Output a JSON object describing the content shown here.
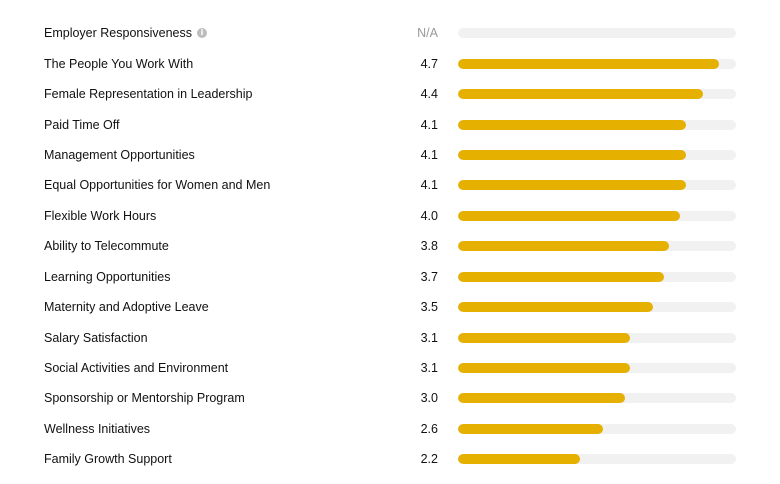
{
  "colors": {
    "bar_fill": "#e5b000",
    "bar_track": "#f1f1f1",
    "na_text": "#9a9a9a"
  },
  "scale_max": 5,
  "ratings": [
    {
      "label": "Employer Responsiveness",
      "score": "N/A",
      "value": null,
      "has_info_icon": true
    },
    {
      "label": "The People You Work With",
      "score": "4.7",
      "value": 4.7
    },
    {
      "label": "Female Representation in Leadership",
      "score": "4.4",
      "value": 4.4
    },
    {
      "label": "Paid Time Off",
      "score": "4.1",
      "value": 4.1
    },
    {
      "label": "Management Opportunities",
      "score": "4.1",
      "value": 4.1
    },
    {
      "label": "Equal Opportunities for Women and Men",
      "score": "4.1",
      "value": 4.1
    },
    {
      "label": "Flexible Work Hours",
      "score": "4.0",
      "value": 4.0
    },
    {
      "label": "Ability to Telecommute",
      "score": "3.8",
      "value": 3.8
    },
    {
      "label": "Learning Opportunities",
      "score": "3.7",
      "value": 3.7
    },
    {
      "label": "Maternity and Adoptive Leave",
      "score": "3.5",
      "value": 3.5
    },
    {
      "label": "Salary Satisfaction",
      "score": "3.1",
      "value": 3.1
    },
    {
      "label": "Social Activities and Environment",
      "score": "3.1",
      "value": 3.1
    },
    {
      "label": "Sponsorship or Mentorship Program",
      "score": "3.0",
      "value": 3.0
    },
    {
      "label": "Wellness Initiatives",
      "score": "2.6",
      "value": 2.6
    },
    {
      "label": "Family Growth Support",
      "score": "2.2",
      "value": 2.2
    }
  ]
}
